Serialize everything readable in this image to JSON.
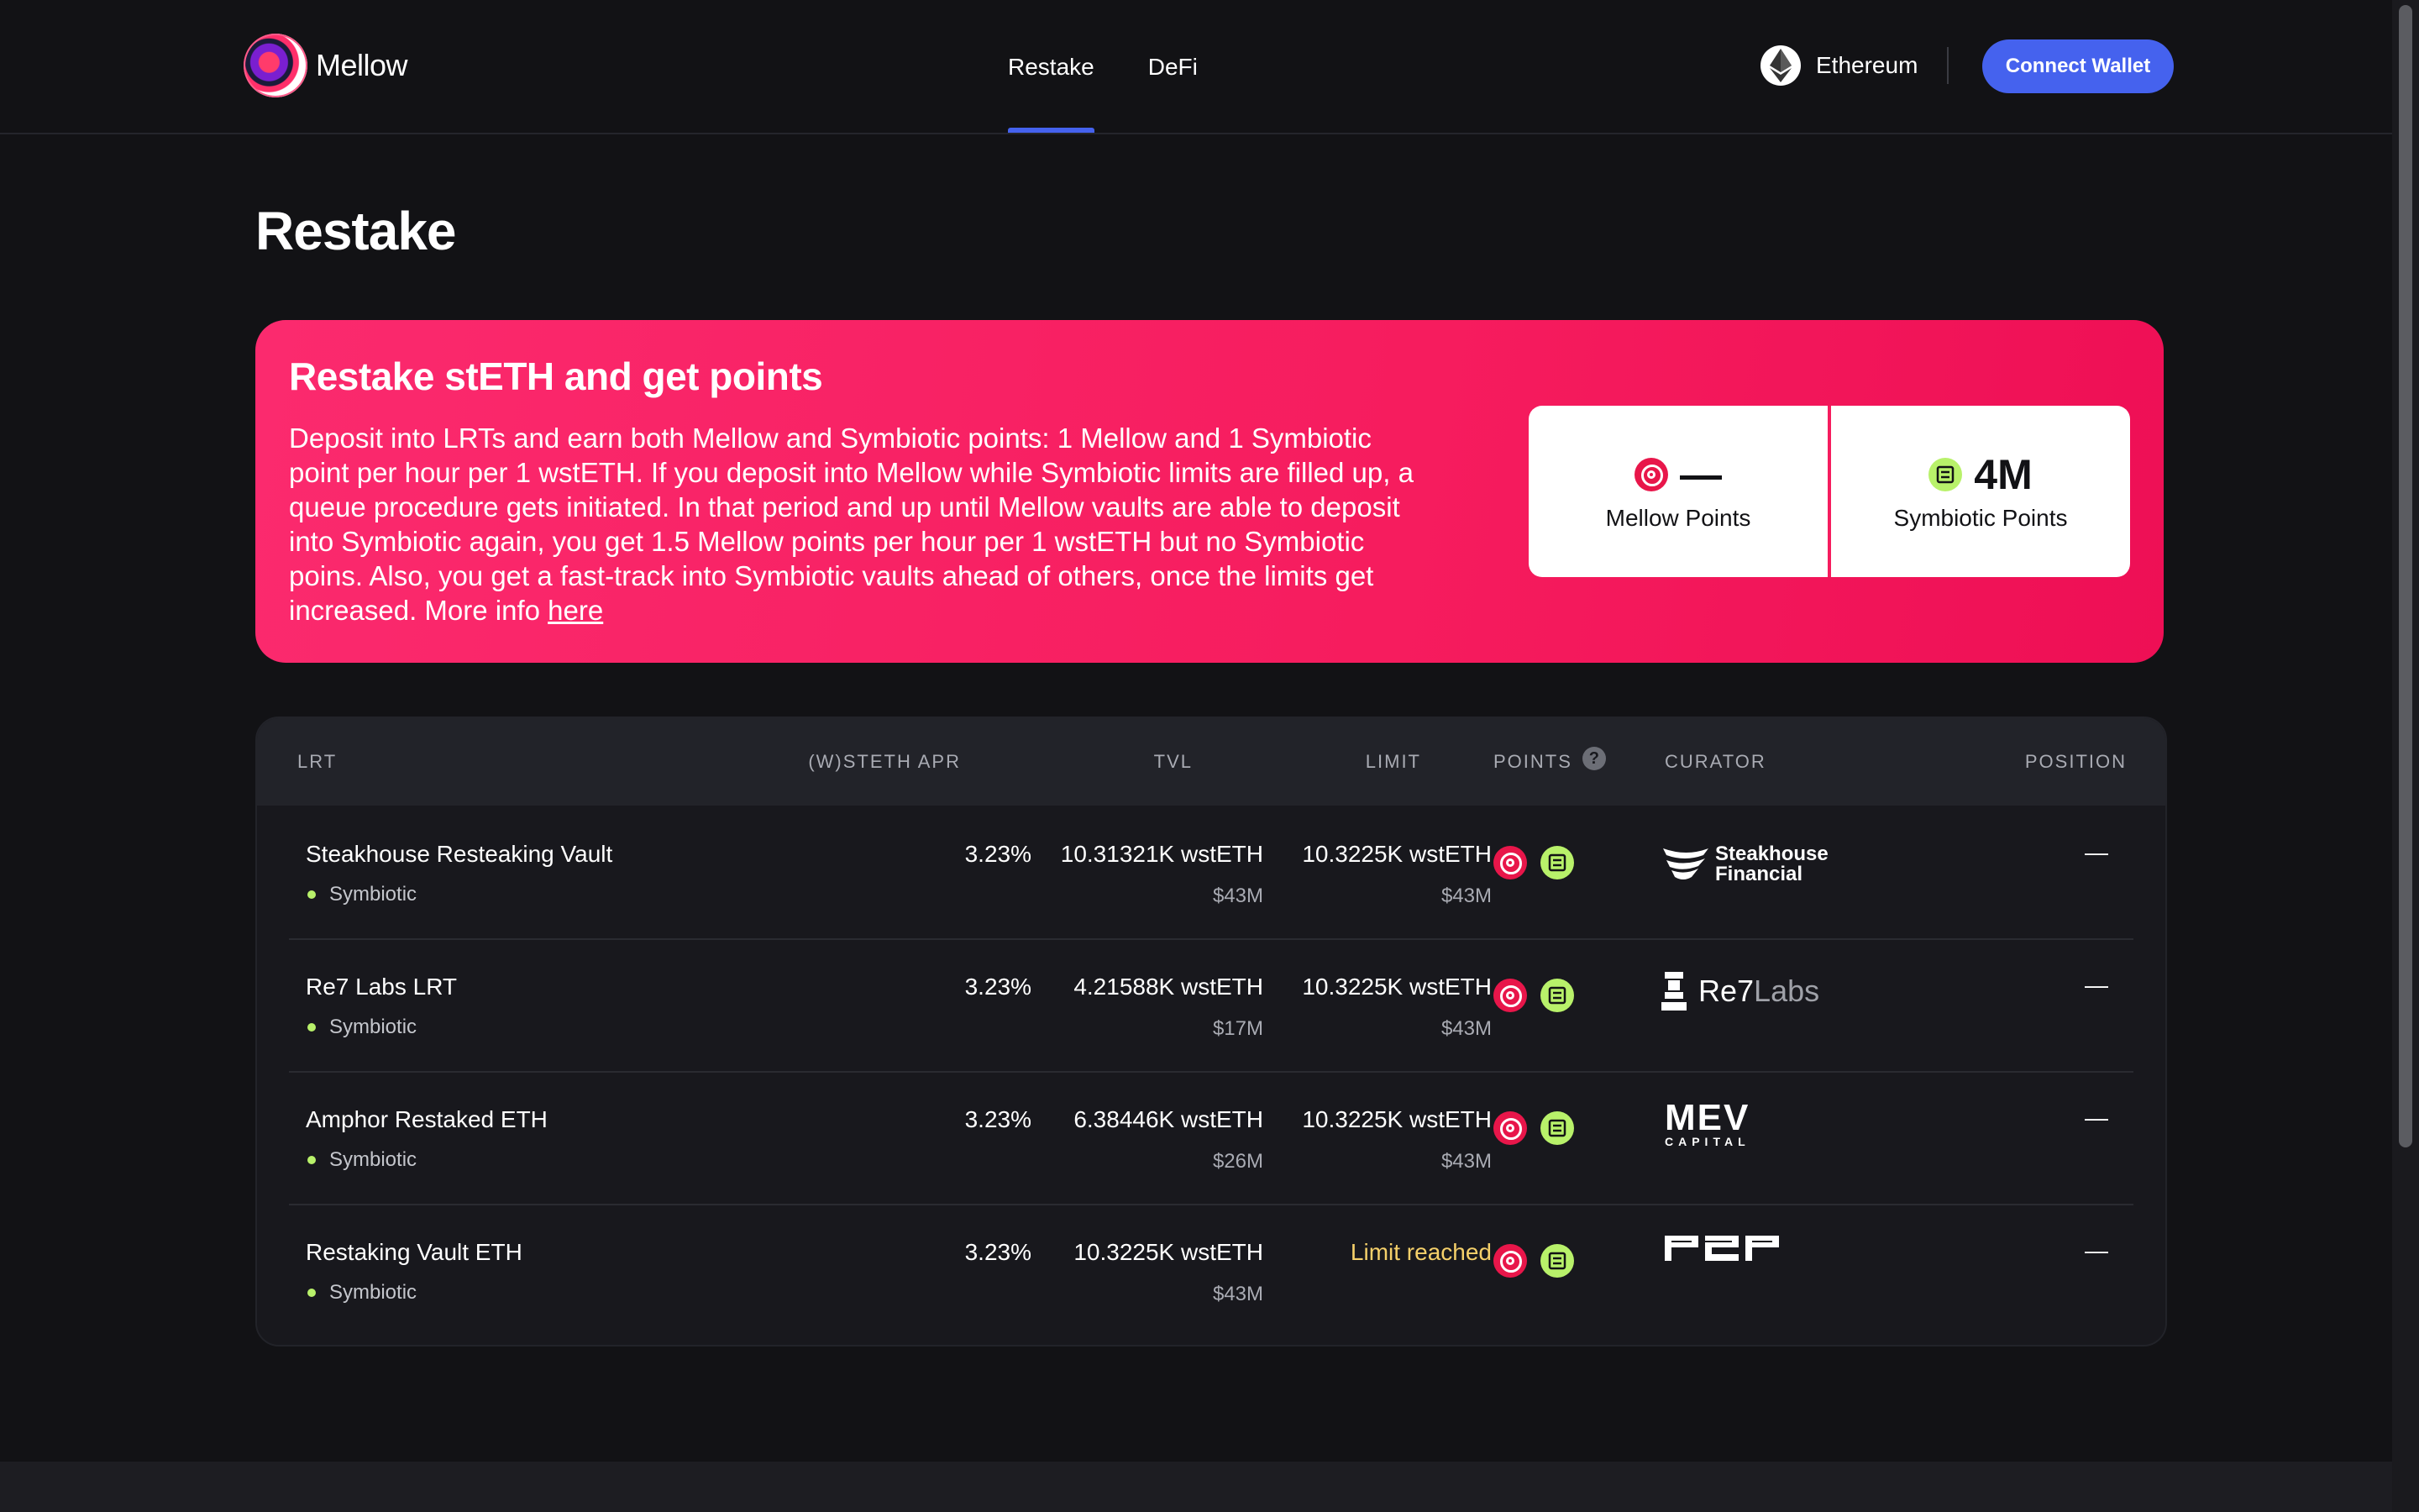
{
  "header": {
    "logo_text": "Mellow",
    "nav": [
      {
        "label": "Restake",
        "active": true
      },
      {
        "label": "DeFi",
        "active": false
      }
    ],
    "network": "Ethereum",
    "connect_label": "Connect Wallet",
    "accent": "#4562ee"
  },
  "page": {
    "title": "Restake"
  },
  "banner": {
    "title": "Restake stETH and get points",
    "text": "Deposit into LRTs and earn both Mellow and Symbiotic points: 1 Mellow and 1 Symbiotic point per hour per 1 wstETH. If you deposit into Mellow while Symbiotic limits are filled up, a queue procedure gets initiated. In that period and up until Mellow vaults are able to deposit into Symbiotic again, you get 1.5 Mellow points per hour per 1 wstETH but no Symbiotic poins. Also, you get a fast-track into Symbiotic vaults ahead of others, once the limits get increased. More info",
    "link_label": "here",
    "mellow_points_value": "—",
    "mellow_points_label": "Mellow Points",
    "symbiotic_points_value": "4M",
    "symbiotic_points_label": "Symbiotic Points",
    "color": "#f61c5e"
  },
  "table": {
    "headers": {
      "lrt": "LRT",
      "apr": "(W)STETH APR",
      "tvl": "TVL",
      "limit": "LIMIT",
      "points": "POINTS",
      "curator": "CURATOR",
      "position": "POSITION"
    },
    "rows": [
      {
        "name": "Steakhouse Resteaking Vault",
        "tag": "Symbiotic",
        "apr": "3.23%",
        "tvl": "10.31321K wstETH",
        "tvl_usd": "$43M",
        "limit": "10.3225K wstETH",
        "limit_usd": "$43M",
        "curator_line1": "Steakhouse",
        "curator_line2": "Financial",
        "position": "—"
      },
      {
        "name": "Re7 Labs LRT",
        "tag": "Symbiotic",
        "apr": "3.23%",
        "tvl": "4.21588K wstETH",
        "tvl_usd": "$17M",
        "limit": "10.3225K wstETH",
        "limit_usd": "$43M",
        "curator_line1": "Re7",
        "curator_line2": "Labs",
        "position": "—"
      },
      {
        "name": "Amphor Restaked ETH",
        "tag": "Symbiotic",
        "apr": "3.23%",
        "tvl": "6.38446K wstETH",
        "tvl_usd": "$26M",
        "limit": "10.3225K wstETH",
        "limit_usd": "$43M",
        "curator_line1": "MEV",
        "curator_line2": "CAPITAL",
        "position": "—"
      },
      {
        "name": "Restaking Vault ETH",
        "tag": "Symbiotic",
        "apr": "3.23%",
        "tvl": "10.3225K wstETH",
        "tvl_usd": "$43M",
        "limit": "Limit reached",
        "limit_usd": "",
        "curator_line1": "P2P",
        "curator_line2": "",
        "position": "—"
      }
    ]
  }
}
